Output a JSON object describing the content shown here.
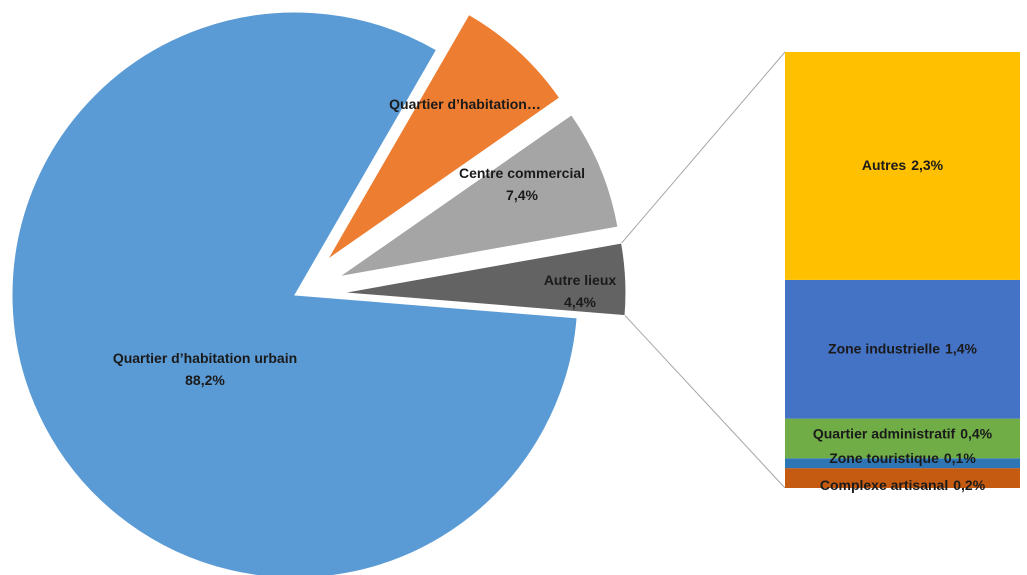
{
  "chart_data": {
    "type": "pie-of-bar",
    "pie": {
      "categories": [
        "Quartier d’habitation urbain",
        "Quartier d’habitation…",
        "Centre commercial",
        "Autre lieux"
      ],
      "values": [
        88.2,
        7.5,
        7.4,
        4.4
      ],
      "value_labels": [
        "88,2%",
        null,
        "7,4%",
        "4,4%"
      ],
      "colors": [
        "#5b9bd5",
        "#ed7d31",
        "#a5a5a5",
        "#636363"
      ]
    },
    "bar": {
      "categories": [
        "Complexe artisanal",
        "Zone touristique",
        "Quartier administratif",
        "Zone industrielle",
        "Autres"
      ],
      "values": [
        0.2,
        0.1,
        0.4,
        1.4,
        2.3
      ],
      "value_labels": [
        "0,2%",
        "0,1%",
        "0,4%",
        "1,4%",
        "2,3%"
      ],
      "colors": [
        "#c55a11",
        "#2e75b6",
        "#70ad47",
        "#4472c4",
        "#ffc000"
      ]
    }
  }
}
